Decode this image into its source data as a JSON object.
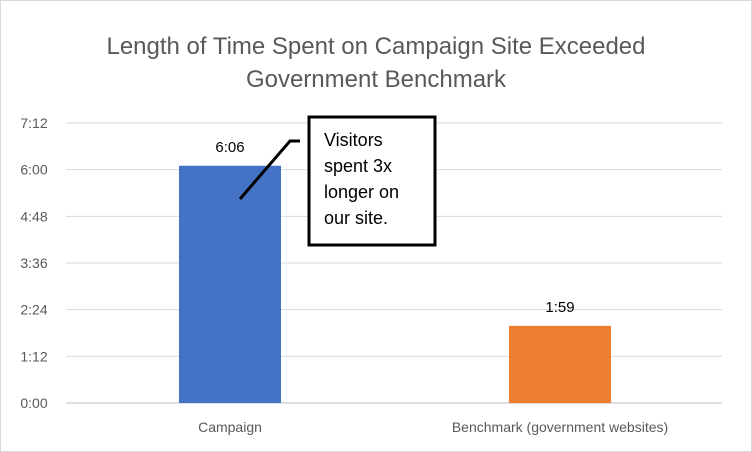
{
  "chart_data": {
    "type": "bar",
    "title_lines": [
      "Length of Time Spent on Campaign Site Exceeded",
      "Government Benchmark"
    ],
    "categories": [
      "Campaign",
      "Benchmark (government websites)"
    ],
    "values_seconds": [
      366,
      119
    ],
    "data_labels": [
      "6:06",
      "1:59"
    ],
    "ylim_seconds": [
      0,
      432
    ],
    "y_ticks": [
      {
        "label": "0:00",
        "value": 0
      },
      {
        "label": "1:12",
        "value": 72
      },
      {
        "label": "2:24",
        "value": 144
      },
      {
        "label": "3:36",
        "value": 216
      },
      {
        "label": "4:48",
        "value": 288
      },
      {
        "label": "6:00",
        "value": 360
      },
      {
        "label": "7:12",
        "value": 432
      }
    ],
    "colors": [
      "#4472C4",
      "#ED7D31"
    ],
    "gridlines": true,
    "legend": "none",
    "callout": {
      "lines": [
        "Visitors",
        "spent 3x",
        "longer on",
        "our site."
      ]
    }
  }
}
